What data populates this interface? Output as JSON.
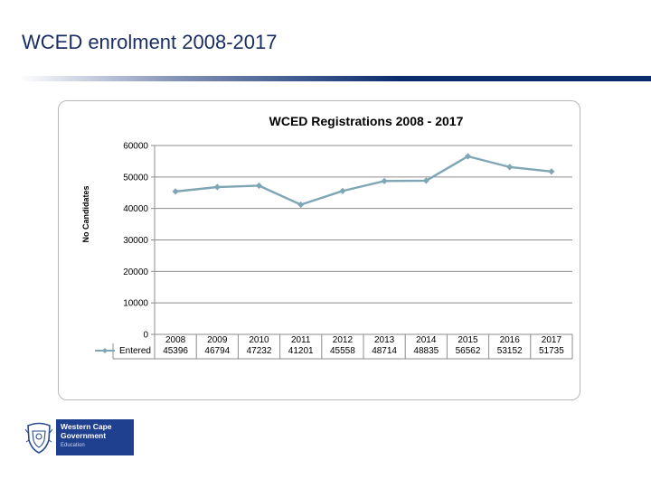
{
  "slide": {
    "title": "WCED enrolment 2008-2017"
  },
  "logo": {
    "line1": "Western Cape",
    "line2": "Government",
    "line3": "Education",
    "color": "#1f3f8f"
  },
  "chart_data": {
    "type": "line",
    "title": "WCED Registrations 2008 - 2017",
    "ylabel": "No Candidates",
    "xlabel": "",
    "ylim": [
      0,
      60000
    ],
    "yticks": [
      0,
      10000,
      20000,
      30000,
      40000,
      50000,
      60000
    ],
    "grid": true,
    "legend": "data-table",
    "categories": [
      "2008",
      "2009",
      "2010",
      "2011",
      "2012",
      "2013",
      "2014",
      "2015",
      "2016",
      "2017"
    ],
    "series": [
      {
        "name": "Entered",
        "color": "#7fa6b4",
        "values": [
          45396,
          46794,
          47232,
          41201,
          45558,
          48714,
          48835,
          56562,
          53152,
          51735
        ]
      }
    ]
  }
}
